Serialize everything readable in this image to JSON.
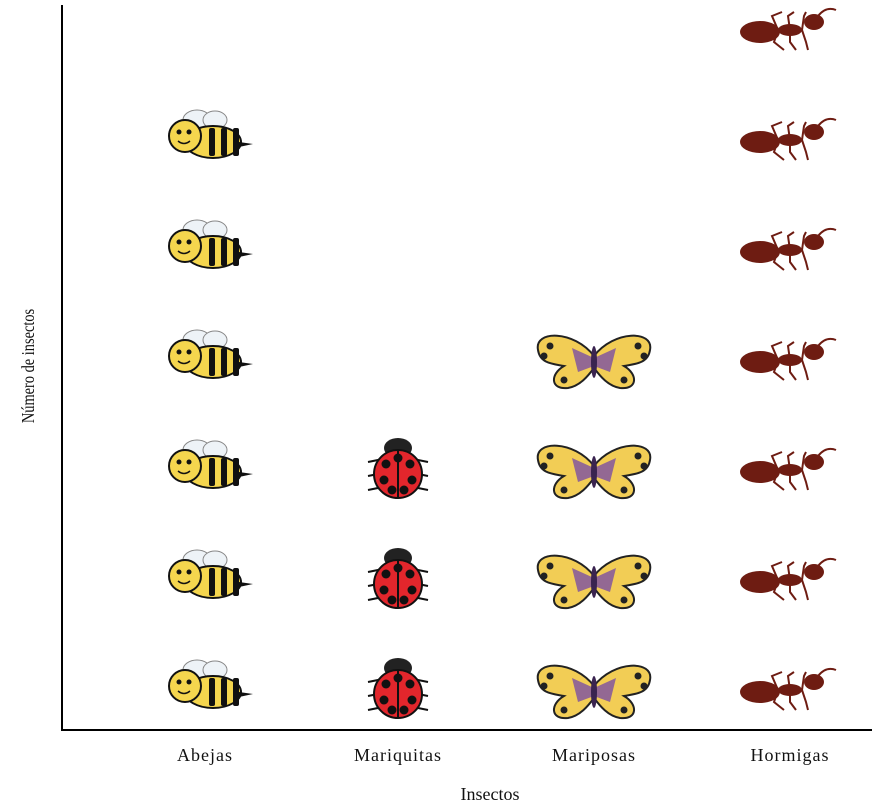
{
  "chart_data": {
    "type": "pictograph",
    "x_label": "Insectos",
    "y_label": "Número de insectos",
    "categories": [
      "Abejas",
      "Mariquitas",
      "Mariposas",
      "Hormigas"
    ],
    "values": [
      6,
      3,
      4,
      7
    ],
    "colors": [
      "#f5d64e",
      "#e2262c",
      "#f2cd55",
      "#6e1c12"
    ]
  }
}
